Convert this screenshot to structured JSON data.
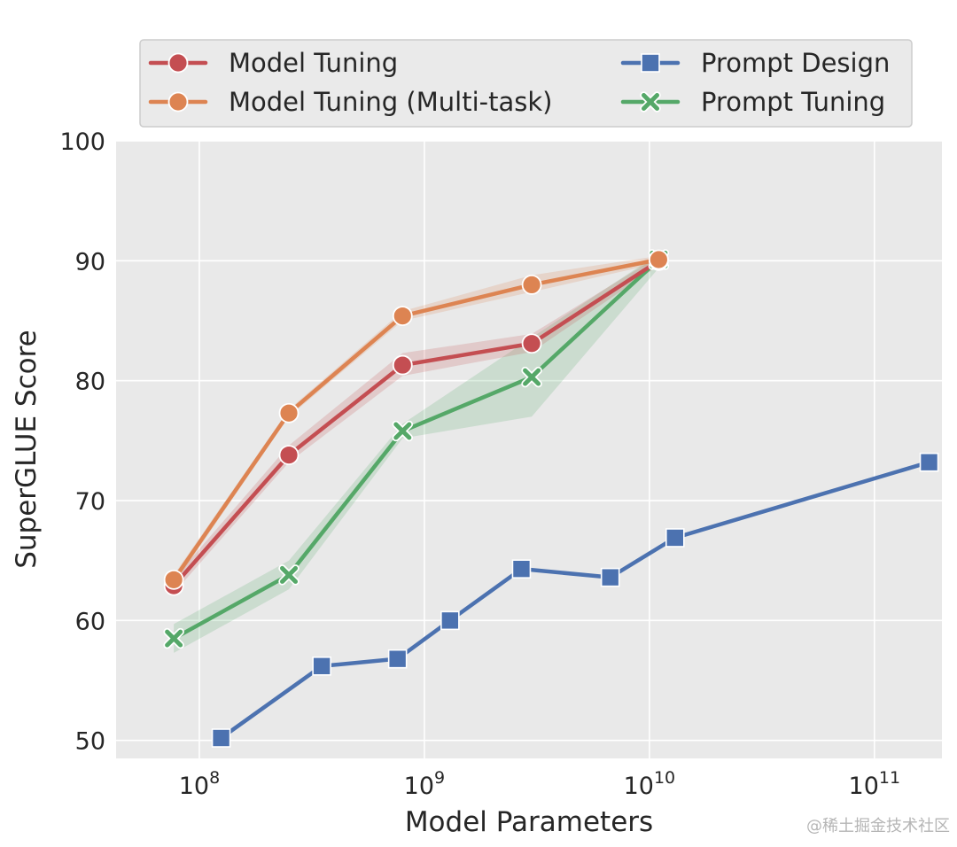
{
  "chart_data": {
    "type": "line",
    "title": "",
    "xlabel": "Model Parameters",
    "ylabel": "SuperGLUE Score",
    "xscale": "log",
    "xlim_log10": [
      7.63,
      11.3
    ],
    "ylim": [
      48.5,
      100
    ],
    "yticks": [
      50,
      60,
      70,
      80,
      90,
      100
    ],
    "xticks": [
      {
        "exp": 8,
        "base": "10",
        "sup": "8"
      },
      {
        "exp": 9,
        "base": "10",
        "sup": "9"
      },
      {
        "exp": 10,
        "base": "10",
        "sup": "10"
      },
      {
        "exp": 11,
        "base": "10",
        "sup": "11"
      }
    ],
    "grid": true,
    "legend_position": "top",
    "series": [
      {
        "name": "Model Tuning",
        "color": "#c44e52",
        "marker": "circle",
        "x": [
          77000000,
          250000000,
          800000000,
          3000000000,
          11000000000
        ],
        "y": [
          62.9,
          73.8,
          81.3,
          83.1,
          90.0
        ],
        "band_low": [
          62.3,
          73.2,
          80.4,
          82.4,
          89.6
        ],
        "band_high": [
          63.5,
          74.6,
          82.3,
          83.9,
          90.4
        ]
      },
      {
        "name": "Model Tuning (Multi-task)",
        "color": "#dd8452",
        "marker": "circle",
        "x": [
          77000000,
          250000000,
          800000000,
          3000000000,
          11000000000
        ],
        "y": [
          63.4,
          77.3,
          85.4,
          88.0,
          90.1
        ],
        "band_low": [
          63.0,
          77.0,
          85.0,
          87.4,
          89.8
        ],
        "band_high": [
          63.8,
          77.6,
          85.8,
          88.8,
          90.4
        ]
      },
      {
        "name": "Prompt Design",
        "color": "#4c72b0",
        "marker": "square",
        "x": [
          125000000,
          350000000,
          760000000,
          1300000000,
          2700000000,
          6700000000,
          13000000000,
          175000000000
        ],
        "y": [
          50.2,
          56.2,
          56.8,
          60.0,
          64.3,
          63.6,
          66.9,
          73.2
        ]
      },
      {
        "name": "Prompt Tuning",
        "color": "#55a868",
        "marker": "x",
        "x": [
          77000000,
          250000000,
          800000000,
          3000000000,
          11000000000
        ],
        "y": [
          58.5,
          63.8,
          75.8,
          80.3,
          90.1
        ],
        "band_low": [
          57.3,
          62.6,
          75.2,
          77.0,
          89.4
        ],
        "band_high": [
          59.7,
          65.0,
          76.4,
          83.6,
          90.6
        ]
      }
    ],
    "legend": {
      "col1": [
        "Model Tuning",
        "Model Tuning (Multi-task)"
      ],
      "col2": [
        "Prompt Design",
        "Prompt Tuning"
      ]
    }
  },
  "watermark": "@稀土掘金技术社区"
}
